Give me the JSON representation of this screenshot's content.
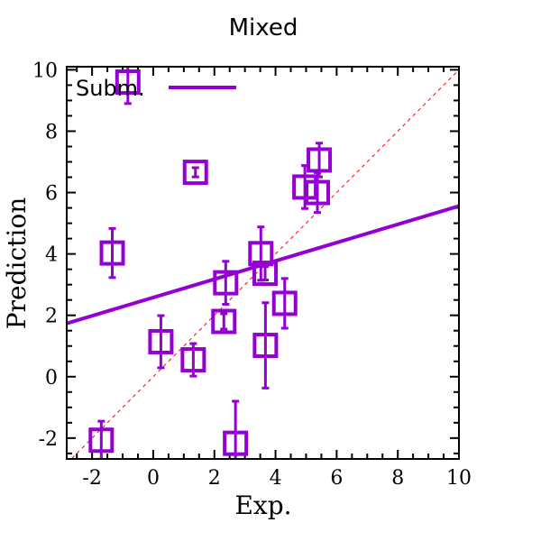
{
  "colors": {
    "series": "#9400d3",
    "diagonal": "#ff0000",
    "axis": "#000000"
  },
  "chart_data": {
    "type": "scatter",
    "title": "Mixed",
    "xlabel": "Exp.",
    "ylabel": "Prediction",
    "xlim": [
      -2.83,
      10
    ],
    "ylim": [
      -2.68,
      10.1
    ],
    "xticks": [
      -2,
      0,
      2,
      4,
      6,
      8,
      10
    ],
    "yticks": [
      -2,
      0,
      2,
      4,
      6,
      8,
      10
    ],
    "xtick_labels": [
      "-2",
      "0",
      "2",
      "4",
      "6",
      "8",
      "10"
    ],
    "ytick_labels": [
      "-2",
      "0",
      "2",
      "4",
      "6",
      "8",
      "10"
    ],
    "legend": {
      "label": "Subm.",
      "position": "top-left"
    },
    "regression_line": {
      "slope": 0.298,
      "intercept": 2.58
    },
    "identity_line": true,
    "points": [
      {
        "x": -0.83,
        "y": 9.6,
        "err": 0.7
      },
      {
        "x": -1.34,
        "y": 4.03,
        "err": 0.8
      },
      {
        "x": 0.25,
        "y": 1.14,
        "err": 0.85
      },
      {
        "x": 1.31,
        "y": 0.55,
        "err": 0.53
      },
      {
        "x": 1.38,
        "y": 6.66,
        "err": 0.15
      },
      {
        "x": 2.37,
        "y": 3.06,
        "err": 0.7
      },
      {
        "x": 2.31,
        "y": 1.8,
        "err": 0.25
      },
      {
        "x": 3.52,
        "y": 4.01,
        "err": 0.87
      },
      {
        "x": 3.66,
        "y": 3.37,
        "err": 0.22
      },
      {
        "x": 4.3,
        "y": 2.39,
        "err": 0.81
      },
      {
        "x": 3.67,
        "y": 1.02,
        "err": 1.39
      },
      {
        "x": 5.43,
        "y": 7.06,
        "err": 0.55
      },
      {
        "x": 4.96,
        "y": 6.18,
        "err": 0.7
      },
      {
        "x": 5.37,
        "y": 6.0,
        "err": 0.65
      },
      {
        "x": -1.7,
        "y": -2.07,
        "err": 0.62
      },
      {
        "x": 2.69,
        "y": -2.17,
        "err": 1.37
      }
    ]
  }
}
